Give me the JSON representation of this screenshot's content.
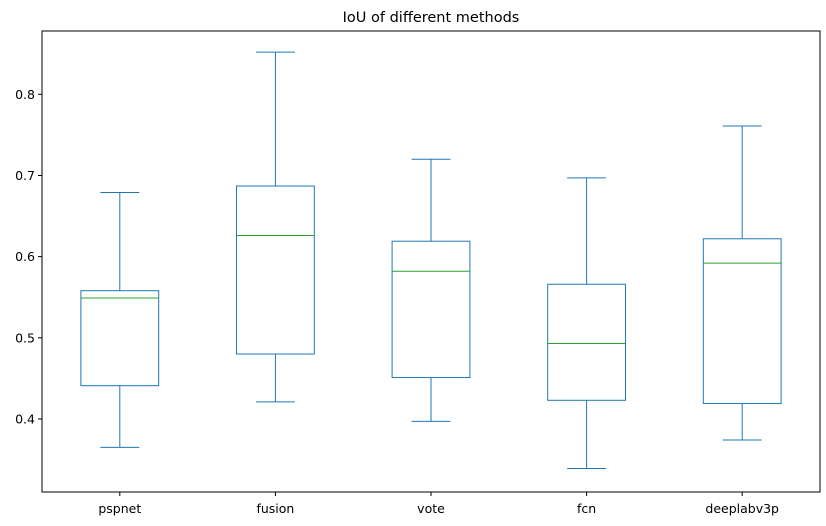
{
  "chart_data": {
    "type": "box",
    "title": "IoU of different methods",
    "xlabel": "",
    "ylabel": "",
    "ylim": [
      0.31,
      0.878
    ],
    "yticks": [
      0.4,
      0.5,
      0.6,
      0.7,
      0.8
    ],
    "ytick_labels": [
      "0.4",
      "0.5",
      "0.6",
      "0.7",
      "0.8"
    ],
    "grid": false,
    "colors": {
      "box": "#1f77b4",
      "median": "#2ca02c",
      "axes": "#000000"
    },
    "categories": [
      "pspnet",
      "fusion",
      "vote",
      "fcn",
      "deeplabv3p"
    ],
    "boxes": [
      {
        "name": "pspnet",
        "whisker_low": 0.365,
        "q1": 0.441,
        "median": 0.549,
        "q3": 0.558,
        "whisker_high": 0.679
      },
      {
        "name": "fusion",
        "whisker_low": 0.421,
        "q1": 0.48,
        "median": 0.626,
        "q3": 0.687,
        "whisker_high": 0.852
      },
      {
        "name": "vote",
        "whisker_low": 0.397,
        "q1": 0.451,
        "median": 0.582,
        "q3": 0.619,
        "whisker_high": 0.72
      },
      {
        "name": "fcn",
        "whisker_low": 0.339,
        "q1": 0.423,
        "median": 0.493,
        "q3": 0.566,
        "whisker_high": 0.697
      },
      {
        "name": "deeplabv3p",
        "whisker_low": 0.374,
        "q1": 0.419,
        "median": 0.592,
        "q3": 0.622,
        "whisker_high": 0.761
      }
    ]
  }
}
